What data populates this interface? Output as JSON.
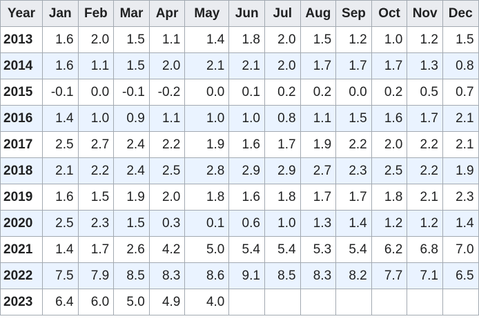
{
  "table": {
    "headers": [
      "Year",
      "Jan",
      "Feb",
      "Mar",
      "Apr",
      "May",
      "Jun",
      "Jul",
      "Aug",
      "Sep",
      "Oct",
      "Nov",
      "Dec"
    ],
    "rows": [
      {
        "year": "2013",
        "values": [
          "1.6",
          "2.0",
          "1.5",
          "1.1",
          "1.4",
          "1.8",
          "2.0",
          "1.5",
          "1.2",
          "1.0",
          "1.2",
          "1.5"
        ]
      },
      {
        "year": "2014",
        "values": [
          "1.6",
          "1.1",
          "1.5",
          "2.0",
          "2.1",
          "2.1",
          "2.0",
          "1.7",
          "1.7",
          "1.7",
          "1.3",
          "0.8"
        ]
      },
      {
        "year": "2015",
        "values": [
          "-0.1",
          "0.0",
          "-0.1",
          "-0.2",
          "0.0",
          "0.1",
          "0.2",
          "0.2",
          "0.0",
          "0.2",
          "0.5",
          "0.7"
        ]
      },
      {
        "year": "2016",
        "values": [
          "1.4",
          "1.0",
          "0.9",
          "1.1",
          "1.0",
          "1.0",
          "0.8",
          "1.1",
          "1.5",
          "1.6",
          "1.7",
          "2.1"
        ]
      },
      {
        "year": "2017",
        "values": [
          "2.5",
          "2.7",
          "2.4",
          "2.2",
          "1.9",
          "1.6",
          "1.7",
          "1.9",
          "2.2",
          "2.0",
          "2.2",
          "2.1"
        ]
      },
      {
        "year": "2018",
        "values": [
          "2.1",
          "2.2",
          "2.4",
          "2.5",
          "2.8",
          "2.9",
          "2.9",
          "2.7",
          "2.3",
          "2.5",
          "2.2",
          "1.9"
        ]
      },
      {
        "year": "2019",
        "values": [
          "1.6",
          "1.5",
          "1.9",
          "2.0",
          "1.8",
          "1.6",
          "1.8",
          "1.7",
          "1.7",
          "1.8",
          "2.1",
          "2.3"
        ]
      },
      {
        "year": "2020",
        "values": [
          "2.5",
          "2.3",
          "1.5",
          "0.3",
          "0.1",
          "0.6",
          "1.0",
          "1.3",
          "1.4",
          "1.2",
          "1.2",
          "1.4"
        ]
      },
      {
        "year": "2021",
        "values": [
          "1.4",
          "1.7",
          "2.6",
          "4.2",
          "5.0",
          "5.4",
          "5.4",
          "5.3",
          "5.4",
          "6.2",
          "6.8",
          "7.0"
        ]
      },
      {
        "year": "2022",
        "values": [
          "7.5",
          "7.9",
          "8.5",
          "8.3",
          "8.6",
          "9.1",
          "8.5",
          "8.3",
          "8.2",
          "7.7",
          "7.1",
          "6.5"
        ]
      },
      {
        "year": "2023",
        "values": [
          "6.4",
          "6.0",
          "5.0",
          "4.9",
          "4.0",
          "",
          "",
          "",
          "",
          "",
          "",
          ""
        ]
      }
    ]
  }
}
